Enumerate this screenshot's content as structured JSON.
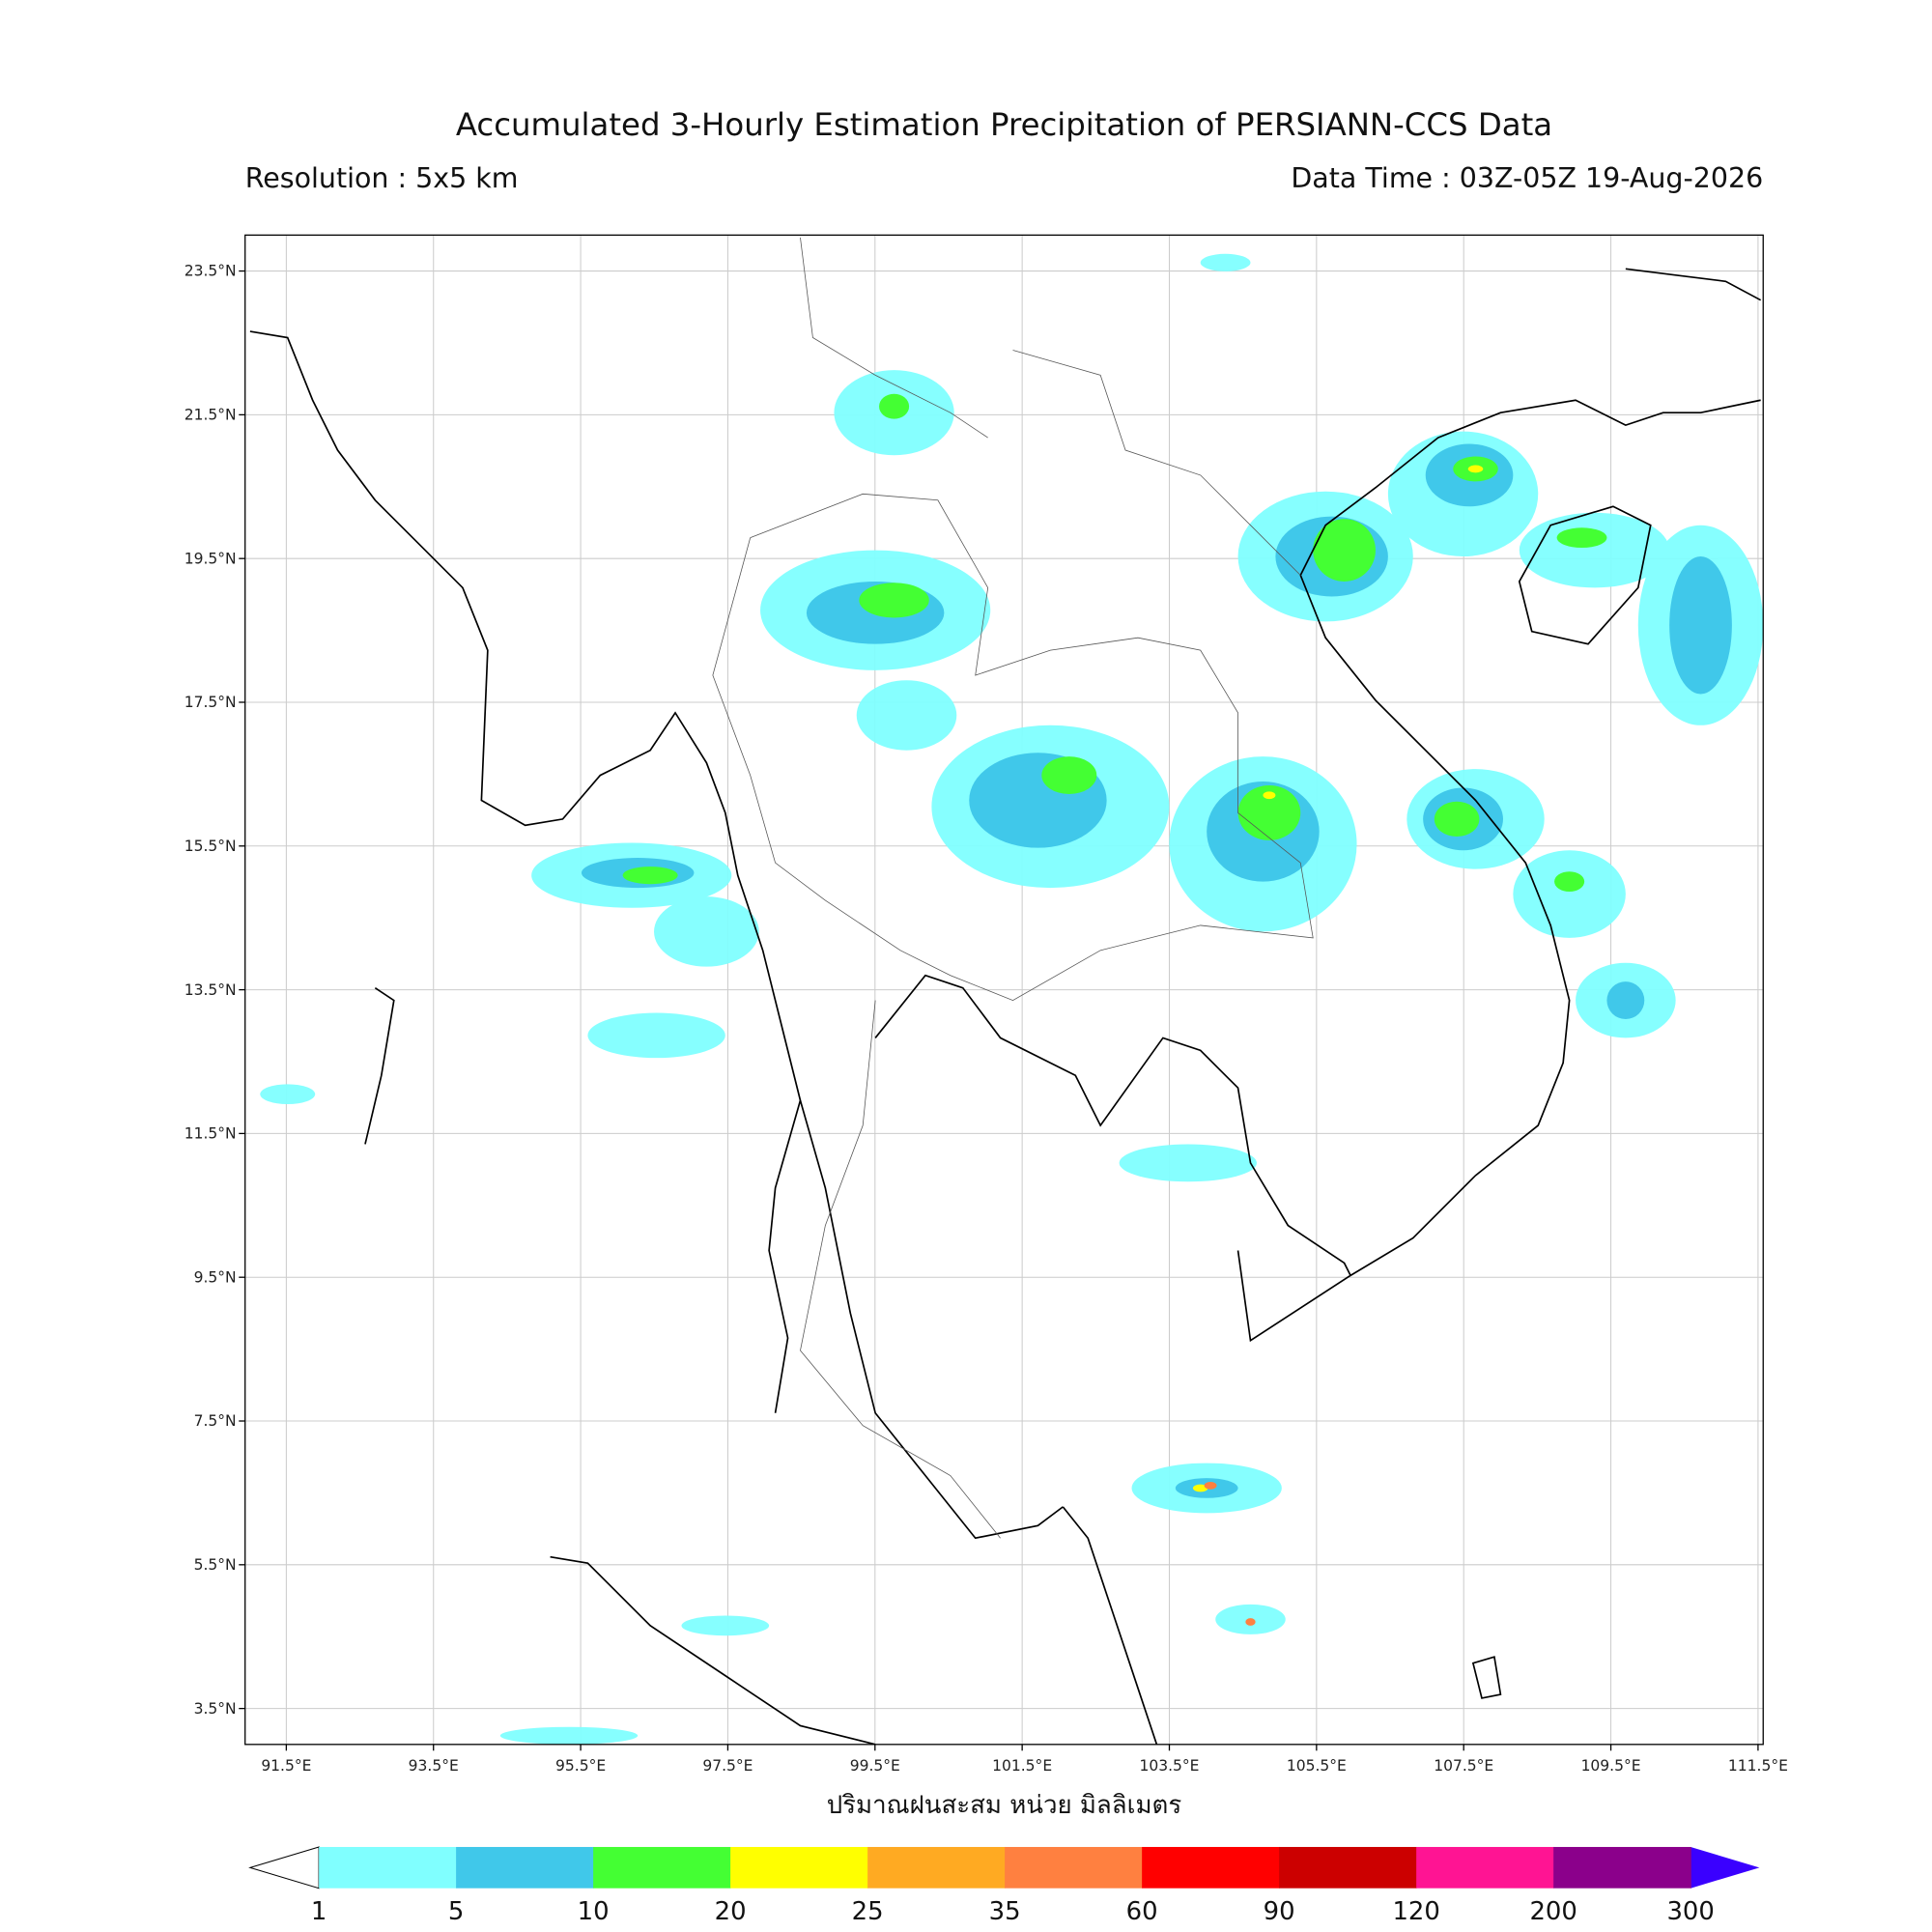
{
  "chart_data": {
    "type": "map",
    "title": "Accumulated 3-Hourly Estimation Precipitation of PERSIANN-CCS Data",
    "subtitle_left": "Resolution : 5x5 km",
    "subtitle_right": "Data Time : 03Z-05Z 19-Aug-2026",
    "xlabel": "ปริมาณฝนสะสม หน่วย มิลลิเมตร",
    "xlim": [
      90.94,
      111.57
    ],
    "ylim": [
      3.0,
      24.0
    ],
    "xticks": [
      {
        "value": 91.5,
        "label": "91.5°E"
      },
      {
        "value": 93.5,
        "label": "93.5°E"
      },
      {
        "value": 95.5,
        "label": "95.5°E"
      },
      {
        "value": 97.5,
        "label": "97.5°E"
      },
      {
        "value": 99.5,
        "label": "99.5°E"
      },
      {
        "value": 101.5,
        "label": "101.5°E"
      },
      {
        "value": 103.5,
        "label": "103.5°E"
      },
      {
        "value": 105.5,
        "label": "105.5°E"
      },
      {
        "value": 107.5,
        "label": "107.5°E"
      },
      {
        "value": 109.5,
        "label": "109.5°E"
      },
      {
        "value": 111.5,
        "label": "111.5°E"
      }
    ],
    "yticks": [
      {
        "value": 23.5,
        "label": "23.5°N"
      },
      {
        "value": 21.5,
        "label": "21.5°N"
      },
      {
        "value": 19.5,
        "label": "19.5°N"
      },
      {
        "value": 17.5,
        "label": "17.5°N"
      },
      {
        "value": 15.5,
        "label": "15.5°N"
      },
      {
        "value": 13.5,
        "label": "13.5°N"
      },
      {
        "value": 11.5,
        "label": "11.5°N"
      },
      {
        "value": 9.5,
        "label": "9.5°N"
      },
      {
        "value": 7.5,
        "label": "7.5°N"
      },
      {
        "value": 5.5,
        "label": "5.5°N"
      },
      {
        "value": 3.5,
        "label": "3.5°N"
      }
    ],
    "grid": true,
    "colorbar": {
      "levels": [
        1,
        5,
        10,
        20,
        25,
        35,
        60,
        90,
        120,
        200,
        300
      ],
      "colors": [
        "#80ffff",
        "#40c8ea",
        "#44ff33",
        "#ffff00",
        "#ffaa22",
        "#ff8040",
        "#ff0000",
        "#cc0000",
        "#ff1493",
        "#8b008b"
      ],
      "under_color": "#ffffff",
      "over_color": "#3a00ff"
    }
  }
}
